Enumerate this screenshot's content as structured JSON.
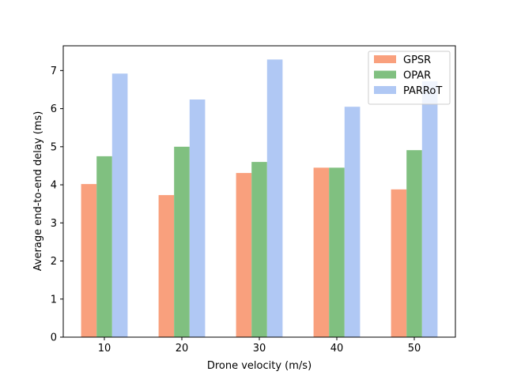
{
  "chart_data": {
    "type": "bar",
    "title": "",
    "xlabel": "Drone velocity (m/s)",
    "ylabel": "Average end-to-end delay (ms)",
    "categories": [
      "10",
      "20",
      "30",
      "40",
      "50"
    ],
    "ylim": [
      0,
      7.65
    ],
    "yticks": [
      0,
      1,
      2,
      3,
      4,
      5,
      6,
      7
    ],
    "grid": false,
    "legend_position": "upper right",
    "series": [
      {
        "name": "GPSR",
        "color": "#f9a07d",
        "values": [
          4.02,
          3.73,
          4.31,
          4.45,
          3.88
        ]
      },
      {
        "name": "OPAR",
        "color": "#80c080",
        "values": [
          4.75,
          5.0,
          4.6,
          4.45,
          4.91
        ]
      },
      {
        "name": "PARRoT",
        "color": "#b0c8f4",
        "values": [
          6.92,
          6.24,
          7.29,
          6.05,
          6.72
        ]
      }
    ]
  }
}
